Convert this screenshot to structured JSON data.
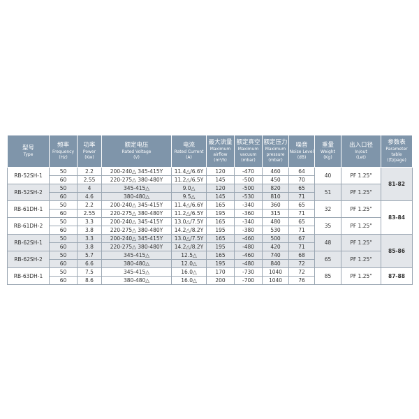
{
  "table": {
    "header": [
      [
        "型号",
        "Type"
      ],
      [
        "频率",
        "Frequency",
        "(Hz)"
      ],
      [
        "功率",
        "Power",
        "(Kw)"
      ],
      [
        "额定电压",
        "Rated Voltage",
        "(V)"
      ],
      [
        "电流",
        "Rated Current",
        "(A)"
      ],
      [
        "最大流量",
        "Maximum",
        "airflow",
        "(m³/h)"
      ],
      [
        "额定真空",
        "Maximum",
        "vacuum",
        "(mbar)"
      ],
      [
        "额定压力",
        "Maximum",
        "pressure",
        "(mbar)"
      ],
      [
        "噪音",
        "Noise Level",
        "(dB)"
      ],
      [
        "重量",
        "Weight",
        "(Kg)"
      ],
      [
        "出入口径",
        "In/out",
        "(Let)"
      ],
      [
        "参数表",
        "Parameter",
        "table",
        "(页/page)"
      ]
    ],
    "groups": [
      {
        "page": "81-82",
        "models": [
          {
            "type": "RB-52SH-1",
            "weight": "40",
            "port": "PF 1.25\"",
            "rows": [
              [
                "50",
                "2.2",
                "200-240△ 345-415Y",
                "11.4△/6.6Y",
                "120",
                "-470",
                "460",
                "64"
              ],
              [
                "60",
                "2.55",
                "220-275△ 380-480Y",
                "11.2△/6.5Y",
                "145",
                "-500",
                "450",
                "70"
              ]
            ]
          },
          {
            "type": "RB-52SH-2",
            "weight": "51",
            "port": "PF 1.25\"",
            "rows": [
              [
                "50",
                "4",
                "345-415△",
                "9.0△",
                "120",
                "-500",
                "820",
                "65"
              ],
              [
                "60",
                "4.6",
                "380-480△",
                "9.5△",
                "145",
                "-530",
                "810",
                "71"
              ]
            ]
          }
        ]
      },
      {
        "page": "83-84",
        "models": [
          {
            "type": "RB-61DH-1",
            "weight": "32",
            "port": "PF 1.25\"",
            "rows": [
              [
                "50",
                "2.2",
                "200-240△ 345-415Y",
                "11.4△/6.6Y",
                "165",
                "-340",
                "360",
                "65"
              ],
              [
                "60",
                "2.55",
                "220-275△ 380-480Y",
                "11.2△/6.5Y",
                "195",
                "-360",
                "315",
                "71"
              ]
            ]
          },
          {
            "type": "RB-61DH-2",
            "weight": "35",
            "port": "PF 1.25\"",
            "rows": [
              [
                "50",
                "3.3",
                "200-240△ 345-415Y",
                "13.0△/7.5Y",
                "165",
                "-340",
                "480",
                "65"
              ],
              [
                "60",
                "3.8",
                "220-275△ 380-480Y",
                "14.2△/8.2Y",
                "195",
                "-380",
                "530",
                "71"
              ]
            ]
          }
        ]
      },
      {
        "page": "85-86",
        "models": [
          {
            "type": "RB-62SH-1",
            "weight": "48",
            "port": "PF 1.25\"",
            "rows": [
              [
                "50",
                "3.3",
                "200-240△ 345-415Y",
                "13.0△/7.5Y",
                "165",
                "-460",
                "500",
                "67"
              ],
              [
                "60",
                "3.8",
                "220-275△ 380-480Y",
                "14.2△/8.2Y",
                "195",
                "-480",
                "420",
                "71"
              ]
            ]
          },
          {
            "type": "RB-62SH-2",
            "weight": "65",
            "port": "PF 1.25\"",
            "rows": [
              [
                "50",
                "5.7",
                "345-415△",
                "12.5△",
                "165",
                "-460",
                "740",
                "68"
              ],
              [
                "60",
                "6.6",
                "380-480△",
                "12.0△",
                "195",
                "-480",
                "840",
                "72"
              ]
            ]
          }
        ]
      },
      {
        "page": "87-88",
        "models": [
          {
            "type": "RB-63DH-1",
            "weight": "85",
            "port": "PF 1.25\"",
            "rows": [
              [
                "50",
                "7.5",
                "345-415△",
                "16.0△",
                "170",
                "-730",
                "1040",
                "72"
              ],
              [
                "60",
                "8.6",
                "380-480△",
                "16.0△",
                "200",
                "-700",
                "1040",
                "76"
              ]
            ]
          }
        ]
      }
    ]
  }
}
